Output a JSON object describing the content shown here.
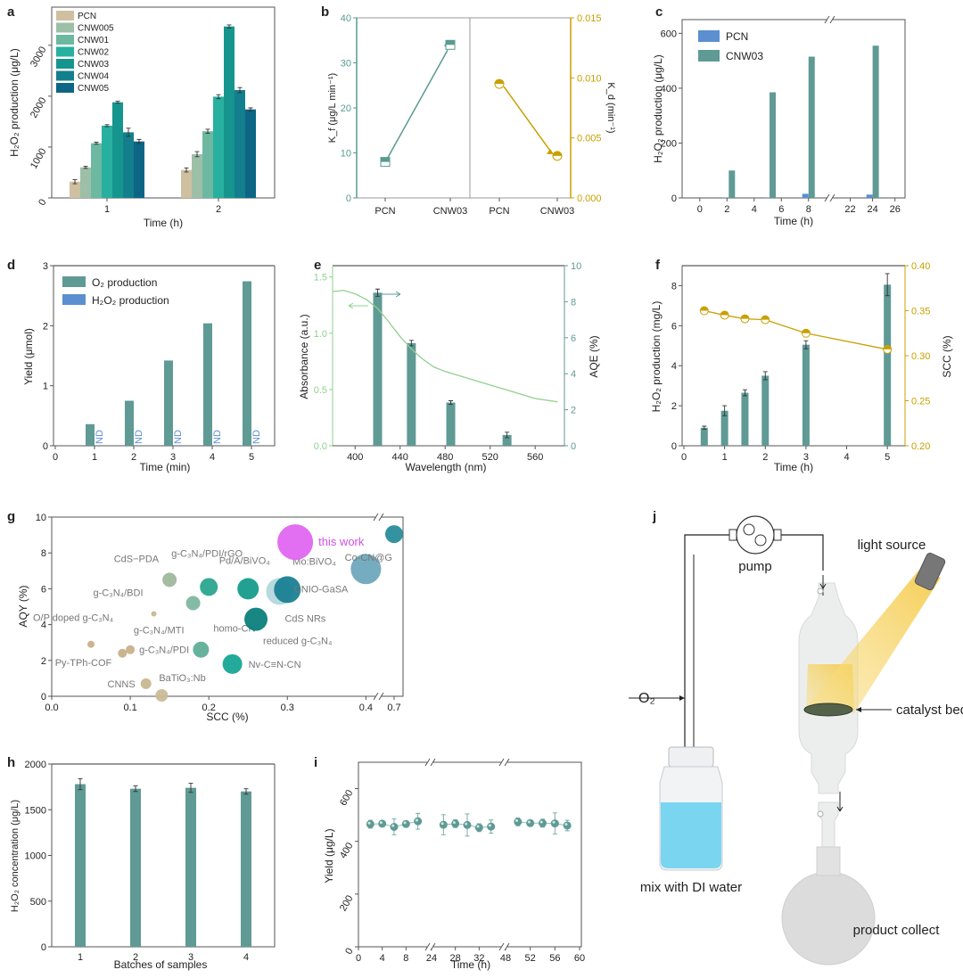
{
  "panel_labels": [
    "a",
    "b",
    "c",
    "d",
    "e",
    "f",
    "g",
    "h",
    "i",
    "j"
  ],
  "chart_data": [
    {
      "panel": "a",
      "type": "bar",
      "xlabel": "Time (h)",
      "ylabel": "H₂O₂ production (μg/L)",
      "categories": [
        "1",
        "2"
      ],
      "ylim": [
        0,
        3750
      ],
      "yticks": [
        "0",
        "1000",
        "2000",
        "3000"
      ],
      "ytick_values": [
        0,
        1000,
        2000,
        3000
      ],
      "legend_position": "top-left",
      "series": [
        {
          "name": "PCN",
          "color": "#cfc0a0",
          "values": [
            320,
            550
          ],
          "errors": [
            40,
            40
          ]
        },
        {
          "name": "CNW005",
          "color": "#9dbfa8",
          "values": [
            600,
            860
          ],
          "errors": [
            20,
            50
          ]
        },
        {
          "name": "CNW01",
          "color": "#6db8a0",
          "values": [
            1075,
            1310
          ],
          "errors": [
            20,
            40
          ]
        },
        {
          "name": "CNW02",
          "color": "#27b0a0",
          "values": [
            1420,
            1990
          ],
          "errors": [
            20,
            40
          ]
        },
        {
          "name": "CNW03",
          "color": "#16958f",
          "values": [
            1880,
            3370
          ],
          "errors": [
            20,
            30
          ]
        },
        {
          "name": "CNW04",
          "color": "#147f8c",
          "values": [
            1290,
            2120
          ],
          "errors": [
            80,
            50
          ]
        },
        {
          "name": "CNW05",
          "color": "#0d6585",
          "values": [
            1110,
            1740
          ],
          "errors": [
            40,
            30
          ]
        }
      ]
    },
    {
      "panel": "b",
      "type": "scatter",
      "categories": [
        "PCN",
        "CNW03",
        "PCN",
        "CNW03"
      ],
      "left_ylabel": "K_f (μg/L min⁻¹)",
      "right_ylabel": "K_d (min⁻¹)",
      "left_ylim": [
        0,
        40
      ],
      "left_yticks": [
        "0",
        "10",
        "20",
        "30",
        "40"
      ],
      "left_ytick_values": [
        0,
        10,
        20,
        30,
        40
      ],
      "right_ylim": [
        0,
        0.015
      ],
      "right_yticks": [
        "0.000",
        "0.005",
        "0.010",
        "0.015"
      ],
      "right_ytick_values": [
        0,
        0.005,
        0.01,
        0.015
      ],
      "series": [
        {
          "name": "Kf",
          "axis": "left",
          "color": "#5a9a90",
          "values": [
            8,
            34
          ]
        },
        {
          "name": "Kd",
          "axis": "right",
          "color": "#c8a000",
          "values": [
            0.0095,
            0.0035
          ]
        }
      ]
    },
    {
      "panel": "c",
      "type": "bar",
      "xlabel": "Time (h)",
      "ylabel": "H₂O₂ production (μg/L)",
      "xticks": [
        "0",
        "2",
        "4",
        "6",
        "8",
        "22",
        "24",
        "26"
      ],
      "xtick_values": [
        0,
        2,
        4,
        6,
        8,
        22,
        24,
        26
      ],
      "x_break": [
        9,
        21
      ],
      "ylim": [
        0,
        650
      ],
      "yticks": [
        "0",
        "200",
        "400",
        "600"
      ],
      "ytick_values": [
        0,
        200,
        400,
        600
      ],
      "legend_position": "top-left",
      "series": [
        {
          "name": "PCN",
          "color": "#5b8fd0",
          "x": [
            2,
            5,
            8,
            24
          ],
          "values": [
            1,
            2,
            15,
            12
          ]
        },
        {
          "name": "CNW03",
          "color": "#5f9a95",
          "x": [
            2,
            5,
            8,
            24
          ],
          "values": [
            100,
            385,
            515,
            555
          ]
        }
      ]
    },
    {
      "panel": "d",
      "type": "bar",
      "xlabel": "Time (min)",
      "ylabel": "Yield (μmol)",
      "xticks": [
        "0",
        "1",
        "2",
        "3",
        "4",
        "5"
      ],
      "xtick_values": [
        0,
        1,
        2,
        3,
        4,
        5
      ],
      "xlim": [
        0,
        5.5
      ],
      "ylim": [
        0,
        3
      ],
      "yticks": [
        "0",
        "1",
        "2",
        "3"
      ],
      "ytick_values": [
        0,
        1,
        2,
        3
      ],
      "legend_position": "top-left",
      "annotation": "ND",
      "series": [
        {
          "name": "O₂ production",
          "color": "#5f9a95",
          "x": [
            1,
            2,
            3,
            4,
            5
          ],
          "values": [
            0.36,
            0.75,
            1.42,
            2.04,
            2.74
          ]
        },
        {
          "name": "H₂O₂ production",
          "color": "#5b8fd0",
          "x": [
            1,
            2,
            3,
            4,
            5
          ],
          "values": [
            0,
            0,
            0,
            0,
            0
          ]
        }
      ]
    },
    {
      "panel": "e",
      "type": "bar",
      "xlabel": "Wavelength (nm)",
      "left_ylabel": "Absorbance (a.u.)",
      "right_ylabel": "AQE (%)",
      "xlim": [
        380,
        586
      ],
      "xticks": [
        "400",
        "440",
        "480",
        "520",
        "560"
      ],
      "xtick_values": [
        400,
        440,
        480,
        520,
        560
      ],
      "left_ylim": [
        0,
        1.6
      ],
      "left_yticks": [
        "0.0",
        "0.5",
        "1.0",
        "1.5"
      ],
      "left_ytick_values": [
        0,
        0.5,
        1,
        1.5
      ],
      "right_ylim": [
        0,
        10
      ],
      "right_yticks": [
        "0",
        "2",
        "4",
        "6",
        "8",
        "10"
      ],
      "right_ytick_values": [
        0,
        2,
        4,
        6,
        8,
        10
      ],
      "series": [
        {
          "name": "AQE",
          "axis": "right",
          "type": "bar",
          "color": "#5f9a95",
          "x": [
            420,
            450,
            485,
            535
          ],
          "values": [
            8.5,
            5.7,
            2.4,
            0.6
          ],
          "errors": [
            0.2,
            0.15,
            0.1,
            0.15
          ]
        },
        {
          "name": "Absorbance",
          "axis": "left",
          "type": "line",
          "color": "#8fd08f",
          "x": [
            380,
            390,
            400,
            410,
            420,
            430,
            440,
            450,
            460,
            470,
            480,
            500,
            520,
            540,
            560,
            580
          ],
          "values": [
            1.37,
            1.38,
            1.35,
            1.3,
            1.22,
            1.1,
            0.97,
            0.86,
            0.77,
            0.7,
            0.66,
            0.6,
            0.54,
            0.48,
            0.42,
            0.39
          ]
        }
      ]
    },
    {
      "panel": "f",
      "type": "bar",
      "xlabel": "Time (h)",
      "left_ylabel": "H₂O₂ production (mg/L)",
      "right_ylabel": "SCC (%)",
      "xlim": [
        0,
        5.5
      ],
      "xticks": [
        "0",
        "1",
        "2",
        "3",
        "4",
        "5"
      ],
      "xtick_values": [
        0,
        1,
        2,
        3,
        4,
        5
      ],
      "left_ylim": [
        0,
        9
      ],
      "left_yticks": [
        "0",
        "2",
        "4",
        "6",
        "8"
      ],
      "left_ytick_values": [
        0,
        2,
        4,
        6,
        8
      ],
      "right_ylim": [
        0.2,
        0.4
      ],
      "right_yticks": [
        "0.20",
        "0.25",
        "0.30",
        "0.35",
        "0.40"
      ],
      "right_ytick_values": [
        0.2,
        0.25,
        0.3,
        0.35,
        0.4
      ],
      "series": [
        {
          "name": "H₂O₂ production",
          "axis": "left",
          "type": "bar",
          "color": "#5f9a95",
          "x": [
            0.5,
            1,
            1.5,
            2,
            3,
            5
          ],
          "values": [
            0.9,
            1.75,
            2.65,
            3.5,
            5.05,
            8.05
          ],
          "errors": [
            0.08,
            0.25,
            0.15,
            0.2,
            0.2,
            0.55
          ]
        },
        {
          "name": "SCC",
          "axis": "right",
          "type": "line",
          "color": "#c8a000",
          "x": [
            0.5,
            1,
            1.5,
            2,
            3,
            5
          ],
          "values": [
            0.35,
            0.345,
            0.341,
            0.34,
            0.325,
            0.307
          ]
        }
      ]
    },
    {
      "panel": "g",
      "type": "scatter",
      "xlabel": "SCC (%)",
      "ylabel": "AQY (%)",
      "xticks": [
        "0.0",
        "0.1",
        "0.2",
        "0.3",
        "0.4",
        "0.7"
      ],
      "xtick_values": [
        0,
        0.1,
        0.2,
        0.3,
        0.4,
        0.7
      ],
      "x_break": [
        0.42,
        0.68
      ],
      "ylim": [
        0,
        10
      ],
      "yticks": [
        "0",
        "2",
        "4",
        "6",
        "8",
        "10"
      ],
      "ytick_values": [
        0,
        2,
        4,
        6,
        8,
        10
      ],
      "points": [
        {
          "label": "O/P doped g-C₃N₄",
          "x": 0.05,
          "y": 2.9,
          "size": 4,
          "color": "#c8b08a"
        },
        {
          "label": "Py-TPh-COF",
          "x": 0.09,
          "y": 2.4,
          "size": 5,
          "color": "#c8b08a"
        },
        {
          "label": "g-C₃N₄/PDI",
          "x": 0.1,
          "y": 2.6,
          "size": 5,
          "color": "#c8b08a"
        },
        {
          "label": "CNNS",
          "x": 0.12,
          "y": 0.7,
          "size": 6,
          "color": "#c8b890"
        },
        {
          "label": "BaTiO₃:Nb",
          "x": 0.14,
          "y": 0.05,
          "size": 7,
          "color": "#c8bc98"
        },
        {
          "label": "g-C₃N₄/BDI",
          "x": 0.13,
          "y": 4.6,
          "size": 3,
          "color": "#c8b890"
        },
        {
          "label": "CdS−PDA",
          "x": 0.15,
          "y": 6.5,
          "size": 8,
          "color": "#9fb89c"
        },
        {
          "label": "g-C₃N₄/MTI",
          "x": 0.18,
          "y": 5.2,
          "size": 8,
          "color": "#7db7a0"
        },
        {
          "label": "homo-CN",
          "x": 0.19,
          "y": 2.6,
          "size": 9,
          "color": "#5fae98"
        },
        {
          "label": "g-C₃N₄/PDI/rGO",
          "x": 0.2,
          "y": 6.1,
          "size": 10,
          "color": "#2aa690"
        },
        {
          "label": "Nv-C≡N-CN",
          "x": 0.23,
          "y": 1.8,
          "size": 11,
          "color": "#18a596"
        },
        {
          "label": "Pd/A/BiVO₄",
          "x": 0.25,
          "y": 6.0,
          "size": 12,
          "color": "#169c8c"
        },
        {
          "label": "reduced g-C₃N₄",
          "x": 0.26,
          "y": 4.3,
          "size": 13,
          "color": "#0c7f7c"
        },
        {
          "label": "CdS NRs",
          "x": 0.29,
          "y": 5.85,
          "size": 15,
          "color": "#a9d4d8"
        },
        {
          "label": "Mo:BiVO₄",
          "x": 0.3,
          "y": 5.95,
          "size": 15,
          "color": "#1a8192"
        },
        {
          "label": "this work",
          "x": 0.31,
          "y": 8.6,
          "size": 20,
          "color": "#e066f0"
        },
        {
          "label": "CNIO-GaSA",
          "x": 0.4,
          "y": 7.1,
          "size": 17,
          "color": "#6fa8bc"
        },
        {
          "label": "Co-CN@G",
          "x": 0.7,
          "y": 9.05,
          "size": 10,
          "color": "#2a8c9c"
        }
      ]
    },
    {
      "panel": "h",
      "type": "bar",
      "xlabel": "Batches of samples",
      "ylabel": "H₂O₂ concentration (μg/L)",
      "categories": [
        "1",
        "2",
        "3",
        "4"
      ],
      "ylim": [
        0,
        2000
      ],
      "yticks": [
        "0",
        "500",
        "1000",
        "1500",
        "2000"
      ],
      "ytick_values": [
        0,
        500,
        1000,
        1500,
        2000
      ],
      "series": [
        {
          "name": "H₂O₂ concentration",
          "color": "#5f9a95",
          "values": [
            1780,
            1730,
            1740,
            1700
          ],
          "errors": [
            60,
            30,
            50,
            30
          ]
        }
      ]
    },
    {
      "panel": "i",
      "type": "scatter",
      "xlabel": "Time (h)",
      "ylabel": "Yield (μg/L)",
      "xticks": [
        "0",
        "4",
        "8",
        "24",
        "28",
        "32",
        "48",
        "52",
        "56",
        "60"
      ],
      "xtick_values": [
        0,
        4,
        8,
        24,
        28,
        32,
        48,
        52,
        56,
        60
      ],
      "x_breaks": [
        [
          12,
          24
        ],
        [
          36,
          48
        ]
      ],
      "ylim": [
        0,
        700
      ],
      "yticks": [
        "0",
        "200",
        "400",
        "600"
      ],
      "ytick_values": [
        0,
        200,
        400,
        600
      ],
      "series": [
        {
          "name": "Yield",
          "color": "#5f9a95",
          "x": [
            2,
            4,
            6,
            8,
            10,
            26,
            28,
            30,
            32,
            34,
            50,
            52,
            54,
            56,
            58
          ],
          "values": [
            465,
            467,
            455,
            466,
            476,
            463,
            467,
            462,
            452,
            456,
            474,
            469,
            469,
            468,
            460
          ],
          "errors": [
            15,
            8,
            30,
            8,
            30,
            38,
            15,
            42,
            15,
            25,
            15,
            8,
            15,
            40,
            20
          ]
        }
      ]
    }
  ],
  "diagram_j": {
    "pump": "pump",
    "light_source": "light source",
    "o2": "O₂",
    "catalyst_bed": "catalyst bed",
    "mix": "mix with DI water",
    "product": "product collect"
  }
}
